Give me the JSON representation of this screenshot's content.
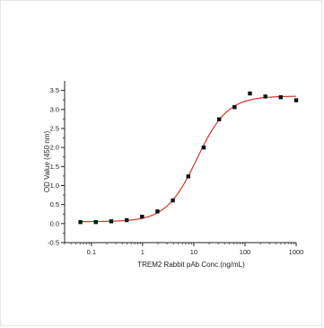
{
  "chart_data": {
    "type": "scatter",
    "title": "",
    "xlabel": "TREM2 Rabbit pAb Conc.(ng/mL)",
    "ylabel": "OD Value (450 nm)",
    "x_scale": "log",
    "xlim": [
      0.03,
      1000
    ],
    "ylim": [
      -0.5,
      3.75
    ],
    "x_ticks": [
      0.1,
      1,
      10,
      100,
      1000
    ],
    "x_tick_labels": [
      "0.1",
      "1",
      "10",
      "100",
      "1000"
    ],
    "y_ticks": [
      -0.5,
      0.0,
      0.5,
      1.0,
      1.5,
      2.0,
      2.5,
      3.0,
      3.5
    ],
    "y_tick_labels": [
      "-0.5",
      "0.0",
      "0.5",
      "1.0",
      "1.5",
      "2.0",
      "2.5",
      "3.0",
      "3.5"
    ],
    "grid": false,
    "legend": "none",
    "series": [
      {
        "kind": "points",
        "color": "#111111",
        "marker": "square",
        "x": [
          0.061,
          0.122,
          0.244,
          0.488,
          0.977,
          1.95,
          3.9,
          7.8,
          15.6,
          31.25,
          62.5,
          125,
          250,
          500,
          1000
        ],
        "y": [
          0.04,
          0.04,
          0.06,
          0.09,
          0.18,
          0.32,
          0.61,
          1.24,
          2.0,
          2.74,
          3.06,
          3.42,
          3.34,
          3.32,
          3.24
        ]
      },
      {
        "kind": "fit",
        "color": "#d9322c",
        "model": "4PL",
        "bottom": 0.05,
        "top": 3.35,
        "ec50": 11.5,
        "hill": 1.45
      }
    ]
  }
}
